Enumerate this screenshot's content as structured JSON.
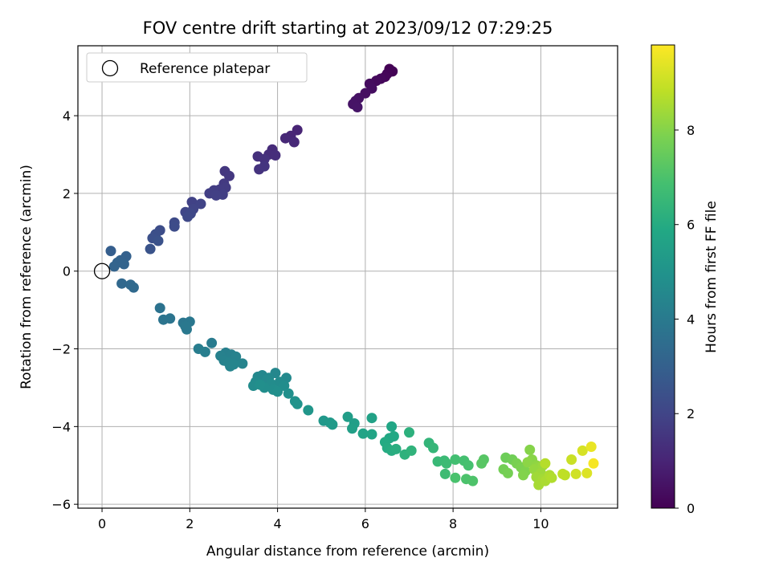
{
  "chart_data": {
    "type": "scatter",
    "title": "FOV centre drift starting at 2023/09/12 07:29:25",
    "xlabel": "Angular distance from reference (arcmin)",
    "ylabel": "Rotation from reference (arcmin)",
    "xlim": [
      -0.55,
      11.75
    ],
    "ylim": [
      -6.1,
      5.8
    ],
    "xticks": [
      0,
      2,
      4,
      6,
      8,
      10
    ],
    "yticks": [
      -6,
      -4,
      -2,
      0,
      2,
      4
    ],
    "xtick_labels": [
      "0",
      "2",
      "4",
      "6",
      "8",
      "10"
    ],
    "ytick_labels": [
      "−6",
      "−4",
      "−2",
      "0",
      "2",
      "4"
    ],
    "grid": true,
    "colormap": "viridis",
    "legend": {
      "placement": "top-left",
      "label": "Reference platepar"
    },
    "reference_point": {
      "x": 0,
      "y": 0
    },
    "colorbar": {
      "label": "Hours from first FF file",
      "range": [
        0,
        9.8
      ],
      "ticks": [
        0,
        2,
        4,
        6,
        8
      ],
      "tick_labels": [
        "0",
        "2",
        "4",
        "6",
        "8"
      ]
    },
    "points": [
      {
        "x": 6.55,
        "y": 5.2,
        "t": 0.0
      },
      {
        "x": 6.62,
        "y": 5.14,
        "t": 0.05
      },
      {
        "x": 6.5,
        "y": 5.08,
        "t": 0.1
      },
      {
        "x": 6.45,
        "y": 5.0,
        "t": 0.15
      },
      {
        "x": 6.35,
        "y": 4.95,
        "t": 0.2
      },
      {
        "x": 6.25,
        "y": 4.9,
        "t": 0.25
      },
      {
        "x": 6.1,
        "y": 4.82,
        "t": 0.3
      },
      {
        "x": 6.15,
        "y": 4.7,
        "t": 0.35
      },
      {
        "x": 6.0,
        "y": 4.58,
        "t": 0.4
      },
      {
        "x": 5.85,
        "y": 4.45,
        "t": 0.45
      },
      {
        "x": 5.78,
        "y": 4.38,
        "t": 0.5
      },
      {
        "x": 5.72,
        "y": 4.3,
        "t": 0.52
      },
      {
        "x": 5.82,
        "y": 4.22,
        "t": 0.55
      },
      {
        "x": 4.45,
        "y": 3.63,
        "t": 1.0
      },
      {
        "x": 4.3,
        "y": 3.48,
        "t": 1.05
      },
      {
        "x": 4.18,
        "y": 3.42,
        "t": 1.1
      },
      {
        "x": 4.38,
        "y": 3.32,
        "t": 1.12
      },
      {
        "x": 3.88,
        "y": 3.13,
        "t": 1.2
      },
      {
        "x": 3.8,
        "y": 3.0,
        "t": 1.25
      },
      {
        "x": 3.95,
        "y": 2.98,
        "t": 1.3
      },
      {
        "x": 3.55,
        "y": 2.95,
        "t": 1.35
      },
      {
        "x": 3.7,
        "y": 2.88,
        "t": 1.4
      },
      {
        "x": 3.58,
        "y": 2.62,
        "t": 1.45
      },
      {
        "x": 3.7,
        "y": 2.7,
        "t": 1.5
      },
      {
        "x": 2.8,
        "y": 2.57,
        "t": 1.55
      },
      {
        "x": 2.9,
        "y": 2.45,
        "t": 1.6
      },
      {
        "x": 2.78,
        "y": 2.25,
        "t": 1.65
      },
      {
        "x": 2.82,
        "y": 2.15,
        "t": 1.7
      },
      {
        "x": 2.68,
        "y": 2.1,
        "t": 1.72
      },
      {
        "x": 2.55,
        "y": 2.08,
        "t": 1.75
      },
      {
        "x": 2.45,
        "y": 2.0,
        "t": 1.8
      },
      {
        "x": 2.75,
        "y": 1.97,
        "t": 1.82
      },
      {
        "x": 2.6,
        "y": 1.95,
        "t": 1.85
      },
      {
        "x": 2.05,
        "y": 1.78,
        "t": 1.9
      },
      {
        "x": 2.25,
        "y": 1.73,
        "t": 1.95
      },
      {
        "x": 2.08,
        "y": 1.6,
        "t": 2.0
      },
      {
        "x": 1.9,
        "y": 1.52,
        "t": 2.05
      },
      {
        "x": 2.02,
        "y": 1.48,
        "t": 2.1
      },
      {
        "x": 1.95,
        "y": 1.4,
        "t": 2.15
      },
      {
        "x": 1.65,
        "y": 1.25,
        "t": 2.2
      },
      {
        "x": 1.65,
        "y": 1.15,
        "t": 2.25
      },
      {
        "x": 1.32,
        "y": 1.05,
        "t": 2.3
      },
      {
        "x": 1.22,
        "y": 0.95,
        "t": 2.35
      },
      {
        "x": 1.15,
        "y": 0.85,
        "t": 2.4
      },
      {
        "x": 1.28,
        "y": 0.78,
        "t": 2.45
      },
      {
        "x": 1.1,
        "y": 0.57,
        "t": 2.5
      },
      {
        "x": 0.2,
        "y": 0.52,
        "t": 2.9
      },
      {
        "x": 0.55,
        "y": 0.38,
        "t": 3.0
      },
      {
        "x": 0.42,
        "y": 0.28,
        "t": 3.05
      },
      {
        "x": 0.35,
        "y": 0.22,
        "t": 3.1
      },
      {
        "x": 0.5,
        "y": 0.18,
        "t": 3.12
      },
      {
        "x": 0.28,
        "y": 0.12,
        "t": 3.15
      },
      {
        "x": 0.45,
        "y": -0.32,
        "t": 3.3
      },
      {
        "x": 0.65,
        "y": -0.35,
        "t": 3.32
      },
      {
        "x": 0.72,
        "y": -0.42,
        "t": 3.35
      },
      {
        "x": 1.32,
        "y": -0.95,
        "t": 3.7
      },
      {
        "x": 1.55,
        "y": -1.22,
        "t": 3.75
      },
      {
        "x": 1.4,
        "y": -1.25,
        "t": 3.78
      },
      {
        "x": 1.85,
        "y": -1.33,
        "t": 3.85
      },
      {
        "x": 2.0,
        "y": -1.3,
        "t": 3.9
      },
      {
        "x": 1.93,
        "y": -1.5,
        "t": 3.95
      },
      {
        "x": 1.9,
        "y": -1.42,
        "t": 3.92
      },
      {
        "x": 2.5,
        "y": -1.85,
        "t": 4.05
      },
      {
        "x": 2.2,
        "y": -2.0,
        "t": 4.1
      },
      {
        "x": 2.35,
        "y": -2.08,
        "t": 4.15
      },
      {
        "x": 2.82,
        "y": -2.1,
        "t": 4.2
      },
      {
        "x": 2.95,
        "y": -2.15,
        "t": 4.25
      },
      {
        "x": 2.7,
        "y": -2.18,
        "t": 4.28
      },
      {
        "x": 3.05,
        "y": -2.2,
        "t": 4.3
      },
      {
        "x": 2.78,
        "y": -2.3,
        "t": 4.32
      },
      {
        "x": 2.88,
        "y": -2.35,
        "t": 4.35
      },
      {
        "x": 3.2,
        "y": -2.38,
        "t": 4.38
      },
      {
        "x": 2.92,
        "y": -2.45,
        "t": 4.4
      },
      {
        "x": 3.0,
        "y": -2.4,
        "t": 4.42
      },
      {
        "x": 3.95,
        "y": -2.62,
        "t": 4.5
      },
      {
        "x": 3.65,
        "y": -2.68,
        "t": 4.52
      },
      {
        "x": 3.55,
        "y": -2.72,
        "t": 4.55
      },
      {
        "x": 3.8,
        "y": -2.75,
        "t": 4.58
      },
      {
        "x": 4.2,
        "y": -2.75,
        "t": 4.6
      },
      {
        "x": 3.75,
        "y": -2.8,
        "t": 4.62
      },
      {
        "x": 3.5,
        "y": -2.85,
        "t": 4.65
      },
      {
        "x": 4.05,
        "y": -2.85,
        "t": 4.67
      },
      {
        "x": 3.85,
        "y": -2.9,
        "t": 4.7
      },
      {
        "x": 3.45,
        "y": -2.95,
        "t": 4.72
      },
      {
        "x": 4.15,
        "y": -2.95,
        "t": 4.75
      },
      {
        "x": 3.7,
        "y": -3.0,
        "t": 4.78
      },
      {
        "x": 3.9,
        "y": -3.05,
        "t": 4.8
      },
      {
        "x": 4.0,
        "y": -3.1,
        "t": 4.82
      },
      {
        "x": 3.6,
        "y": -2.92,
        "t": 4.84
      },
      {
        "x": 4.25,
        "y": -3.15,
        "t": 4.86
      },
      {
        "x": 4.4,
        "y": -3.35,
        "t": 4.95
      },
      {
        "x": 4.45,
        "y": -3.42,
        "t": 5.0
      },
      {
        "x": 4.7,
        "y": -3.58,
        "t": 5.1
      },
      {
        "x": 5.05,
        "y": -3.85,
        "t": 5.2
      },
      {
        "x": 5.2,
        "y": -3.9,
        "t": 5.25
      },
      {
        "x": 5.25,
        "y": -3.95,
        "t": 5.3
      },
      {
        "x": 5.6,
        "y": -3.75,
        "t": 5.4
      },
      {
        "x": 5.75,
        "y": -3.92,
        "t": 5.45
      },
      {
        "x": 5.7,
        "y": -4.05,
        "t": 5.5
      },
      {
        "x": 6.15,
        "y": -3.78,
        "t": 5.6
      },
      {
        "x": 5.95,
        "y": -4.18,
        "t": 5.65
      },
      {
        "x": 6.15,
        "y": -4.2,
        "t": 5.7
      },
      {
        "x": 6.6,
        "y": -4.0,
        "t": 5.8
      },
      {
        "x": 6.55,
        "y": -4.3,
        "t": 5.85
      },
      {
        "x": 6.65,
        "y": -4.25,
        "t": 5.9
      },
      {
        "x": 6.45,
        "y": -4.4,
        "t": 5.95
      },
      {
        "x": 6.5,
        "y": -4.55,
        "t": 6.0
      },
      {
        "x": 6.6,
        "y": -4.62,
        "t": 6.05
      },
      {
        "x": 6.7,
        "y": -4.58,
        "t": 6.1
      },
      {
        "x": 7.0,
        "y": -4.15,
        "t": 6.2
      },
      {
        "x": 6.9,
        "y": -4.72,
        "t": 6.25
      },
      {
        "x": 7.05,
        "y": -4.62,
        "t": 6.3
      },
      {
        "x": 7.45,
        "y": -4.42,
        "t": 6.4
      },
      {
        "x": 7.55,
        "y": -4.55,
        "t": 6.45
      },
      {
        "x": 7.65,
        "y": -4.9,
        "t": 6.55
      },
      {
        "x": 7.8,
        "y": -4.88,
        "t": 6.6
      },
      {
        "x": 7.85,
        "y": -4.95,
        "t": 6.65
      },
      {
        "x": 7.82,
        "y": -5.22,
        "t": 6.7
      },
      {
        "x": 8.05,
        "y": -4.85,
        "t": 6.8
      },
      {
        "x": 8.25,
        "y": -4.88,
        "t": 6.85
      },
      {
        "x": 8.35,
        "y": -5.0,
        "t": 6.9
      },
      {
        "x": 8.05,
        "y": -5.32,
        "t": 6.95
      },
      {
        "x": 8.3,
        "y": -5.35,
        "t": 7.0
      },
      {
        "x": 8.45,
        "y": -5.4,
        "t": 7.05
      },
      {
        "x": 8.7,
        "y": -4.85,
        "t": 7.2
      },
      {
        "x": 8.65,
        "y": -4.95,
        "t": 7.25
      },
      {
        "x": 9.2,
        "y": -4.8,
        "t": 7.6
      },
      {
        "x": 9.35,
        "y": -4.85,
        "t": 7.65
      },
      {
        "x": 9.15,
        "y": -5.1,
        "t": 7.7
      },
      {
        "x": 9.25,
        "y": -5.2,
        "t": 7.75
      },
      {
        "x": 9.45,
        "y": -4.95,
        "t": 7.8
      },
      {
        "x": 9.55,
        "y": -5.05,
        "t": 7.85
      },
      {
        "x": 9.65,
        "y": -5.15,
        "t": 7.9
      },
      {
        "x": 9.6,
        "y": -5.25,
        "t": 7.95
      },
      {
        "x": 9.75,
        "y": -4.6,
        "t": 8.0
      },
      {
        "x": 9.8,
        "y": -4.85,
        "t": 8.05
      },
      {
        "x": 9.7,
        "y": -4.92,
        "t": 8.1
      },
      {
        "x": 9.9,
        "y": -5.0,
        "t": 8.15
      },
      {
        "x": 9.95,
        "y": -5.05,
        "t": 8.2
      },
      {
        "x": 9.85,
        "y": -5.1,
        "t": 8.25
      },
      {
        "x": 10.05,
        "y": -5.0,
        "t": 8.3
      },
      {
        "x": 10.0,
        "y": -5.2,
        "t": 8.35
      },
      {
        "x": 9.9,
        "y": -5.3,
        "t": 8.4
      },
      {
        "x": 10.05,
        "y": -5.35,
        "t": 8.45
      },
      {
        "x": 9.95,
        "y": -5.5,
        "t": 8.5
      },
      {
        "x": 10.1,
        "y": -5.4,
        "t": 8.55
      },
      {
        "x": 10.2,
        "y": -5.25,
        "t": 8.6
      },
      {
        "x": 10.25,
        "y": -5.32,
        "t": 8.65
      },
      {
        "x": 10.1,
        "y": -4.95,
        "t": 8.7
      },
      {
        "x": 10.55,
        "y": -5.25,
        "t": 8.8
      },
      {
        "x": 10.5,
        "y": -5.22,
        "t": 8.85
      },
      {
        "x": 10.7,
        "y": -4.85,
        "t": 9.0
      },
      {
        "x": 10.8,
        "y": -5.22,
        "t": 9.1
      },
      {
        "x": 10.95,
        "y": -4.62,
        "t": 9.2
      },
      {
        "x": 11.05,
        "y": -5.2,
        "t": 9.3
      },
      {
        "x": 11.15,
        "y": -4.52,
        "t": 9.5
      },
      {
        "x": 11.2,
        "y": -4.95,
        "t": 9.7
      }
    ]
  }
}
